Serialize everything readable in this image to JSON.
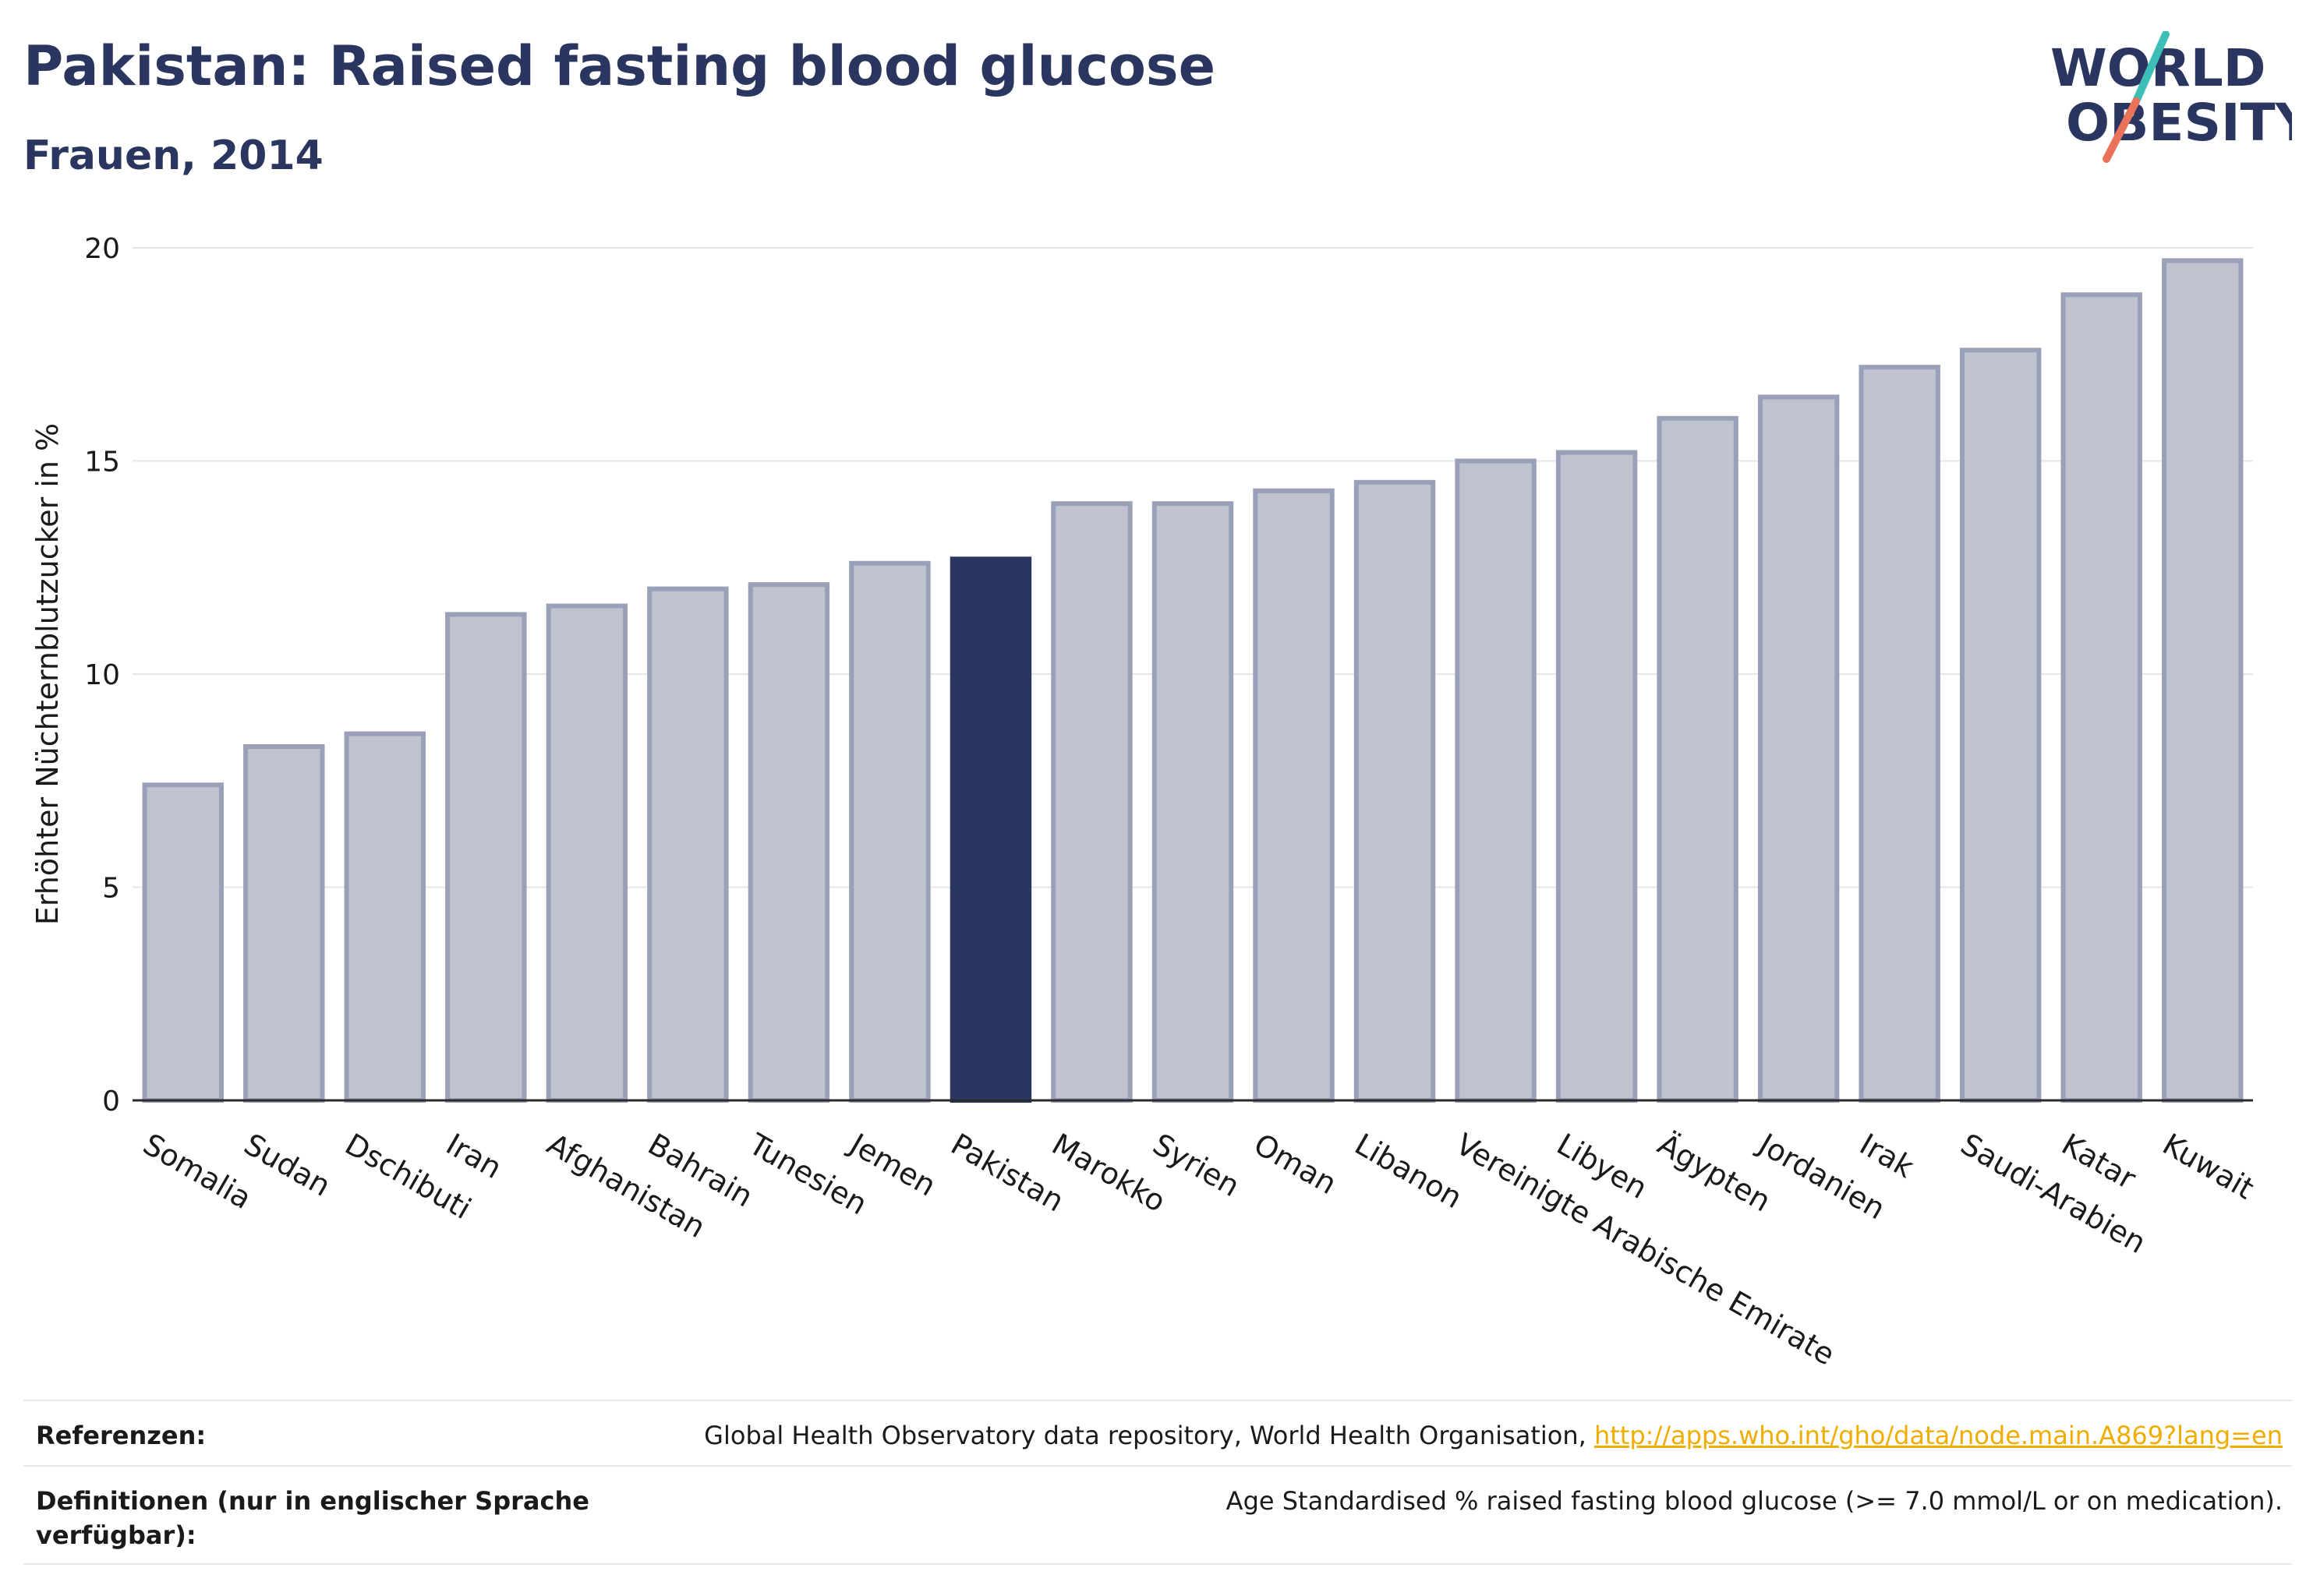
{
  "header": {
    "title": "Pakistan: Raised fasting blood glucose",
    "subtitle": "Frauen, 2014"
  },
  "logo": {
    "line1": "WORLD",
    "line2": "OBESITY",
    "text_color": "#2b3660",
    "slash_colors": [
      "#3dbfb8",
      "#e8735a"
    ]
  },
  "chart_data": {
    "type": "bar",
    "title": "Pakistan: Raised fasting blood glucose",
    "subtitle": "Frauen, 2014",
    "ylabel": "Erhöhter Nüchternblutzucker in %",
    "xlabel": "",
    "ylim": [
      0,
      20
    ],
    "yticks": [
      0,
      5,
      10,
      15,
      20
    ],
    "grid": true,
    "highlight": "Pakistan",
    "bar_color": "#bfc2cf",
    "bar_border_color": "#9aa0b8",
    "highlight_color": "#2b3660",
    "categories": [
      "Somalia",
      "Sudan",
      "Dschibuti",
      "Iran",
      "Afghanistan",
      "Bahrain",
      "Tunesien",
      "Jemen",
      "Pakistan",
      "Marokko",
      "Syrien",
      "Oman",
      "Libanon",
      "Vereinigte Arabische Emirate",
      "Libyen",
      "Ägypten",
      "Jordanien",
      "Irak",
      "Saudi-Arabien",
      "Katar",
      "Kuwait"
    ],
    "values": [
      7.4,
      8.3,
      8.6,
      11.4,
      11.6,
      12.0,
      12.1,
      12.6,
      12.7,
      14.0,
      14.0,
      14.3,
      14.5,
      15.0,
      15.2,
      16.0,
      16.5,
      17.2,
      17.6,
      18.9,
      19.7
    ]
  },
  "footer": {
    "references_label": "Referenzen:",
    "references_text": "Global Health Observatory data repository, World Health Organisation, ",
    "references_link": "http://apps.who.int/gho/data/node.main.A869?lang=en",
    "definitions_label_line1": "Definitionen (nur in englischer Sprache",
    "definitions_label_line2": "verfügbar):",
    "definitions_text": "Age Standardised % raised fasting blood glucose (>= 7.0 mmol/L or on medication)."
  }
}
